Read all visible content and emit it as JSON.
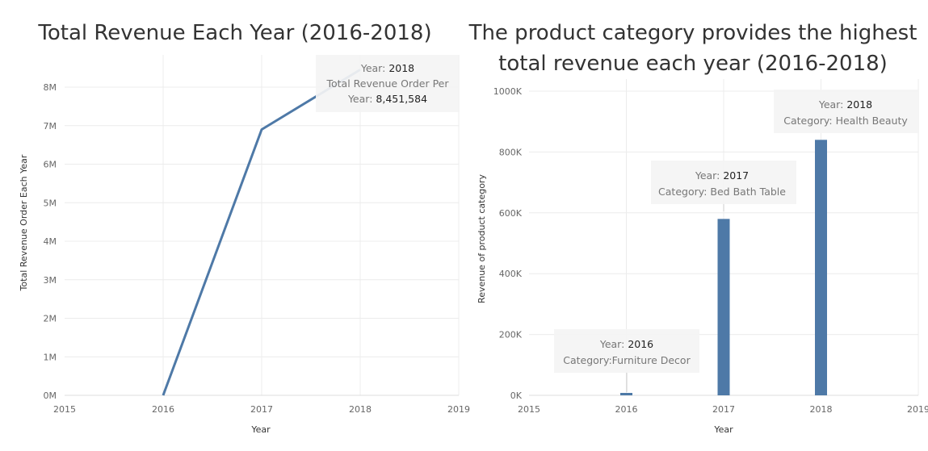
{
  "chart_data": [
    {
      "type": "line",
      "title": "Total Revenue Each Year (2016-2018)",
      "xlabel": "Year",
      "ylabel": "Total Revenue Order Each Year",
      "x_ticks": [
        "2015",
        "2016",
        "2017",
        "2018",
        "2019"
      ],
      "y_ticks": [
        "0M",
        "1M",
        "2M",
        "3M",
        "4M",
        "5M",
        "6M",
        "7M",
        "8M"
      ],
      "xlim": [
        2015,
        2019
      ],
      "ylim": [
        0,
        8000000
      ],
      "series": [
        {
          "x": [
            2016,
            2017,
            2018
          ],
          "values": [
            0,
            6900000,
            8451584
          ]
        }
      ],
      "color": "#4e79a7",
      "tooltip": {
        "year_label": "Year:",
        "year_value": "2018",
        "measure_label_1": "Total Revenue Order Per",
        "measure_label_2": "Year:",
        "measure_value": "8,451,584"
      }
    },
    {
      "type": "bar",
      "title_line1": "The product category provides the highest",
      "title_line2": "total revenue each year (2016-2018)",
      "xlabel": "Year",
      "ylabel": "Revenue of product category",
      "x_ticks": [
        "2015",
        "2016",
        "2017",
        "2018",
        "2019"
      ],
      "y_ticks": [
        "0K",
        "200K",
        "400K",
        "600K",
        "800K",
        "1000K"
      ],
      "xlim": [
        2015,
        2019
      ],
      "ylim": [
        0,
        1000000
      ],
      "categories": [
        "2016",
        "2017",
        "2018"
      ],
      "values": [
        7000,
        580000,
        840000
      ],
      "color": "#4e79a7",
      "tooltips": [
        {
          "year_label": "Year:",
          "year_value": "2016",
          "category_text": "Category:Furniture Decor"
        },
        {
          "year_label": "Year:",
          "year_value": "2017",
          "category_text": "Category: Bed Bath Table"
        },
        {
          "year_label": "Year:",
          "year_value": "2018",
          "category_text": "Category: Health Beauty"
        }
      ]
    }
  ]
}
